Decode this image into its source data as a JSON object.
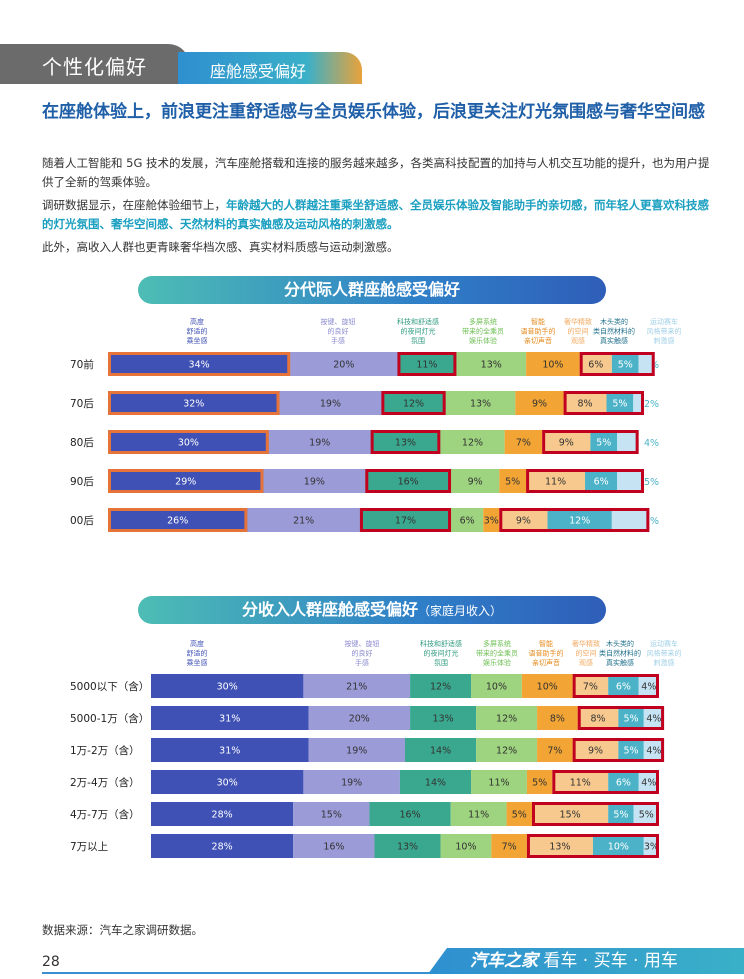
{
  "header": {
    "section": "个性化偏好",
    "subsection": "座舱感受偏好"
  },
  "headline": "在座舱体验上，前浪更注重舒适感与全员娱乐体验，后浪更关注灯光氛围感与奢华空间感",
  "paragraphs": {
    "p1": "随着人工智能和 5G 技术的发展，汽车座舱搭载和连接的服务越来越多，各类高科技配置的加持与人机交互功能的提升，也为用户提供了全新的驾乘体验。",
    "p2_lead": "调研数据显示，在座舱体验细节上，",
    "p2_highlight": "年龄越大的人群越注重乘坐舒适感、全员娱乐体验及智能助手的亲切感，而年轻人更喜欢科技感的灯光氛围、奢华空间感、天然材料的真实触感及运动风格的刺激感。",
    "p3": "此外，高收入人群也更青睐奢华档次感、真实材料质感与运动刺激感。"
  },
  "source_note": "数据来源：汽车之家调研数据。",
  "page_number": "28",
  "footer": {
    "brand": "汽车之家",
    "slogan": "看车 · 买车 · 用车"
  },
  "colors": {
    "c1": "#3f51b5",
    "c2": "#9b9bd8",
    "c3": "#3aa88e",
    "c4": "#9ed37f",
    "c5": "#f2a535",
    "c6": "#f7c98e",
    "c7": "#4bb2c7",
    "c8": "#c6e3f3",
    "highlight_orange": "#e6733a",
    "highlight_red": "#c0001e"
  },
  "chart_data": [
    {
      "type": "bar",
      "stacked": true,
      "orientation": "horizontal",
      "title": "分代际人群座舱感受偏好",
      "subtitle": "",
      "categories": [
        "70前",
        "70后",
        "80后",
        "90后",
        "00后"
      ],
      "series": [
        {
          "name": "高度舒适的乘坐感",
          "values": [
            34,
            32,
            30,
            29,
            26
          ],
          "labels": [
            "34%",
            "32%",
            "30%",
            "29%",
            "26%"
          ]
        },
        {
          "name": "按键、旋钮的良好手感",
          "values": [
            20,
            19,
            19,
            19,
            21
          ],
          "labels": [
            "20%",
            "19%",
            "19%",
            "19%",
            "21%"
          ]
        },
        {
          "name": "科技和舒适感的夜间灯光氛围",
          "values": [
            11,
            12,
            13,
            16,
            17
          ],
          "labels": [
            "11%",
            "12%",
            "13%",
            "16%",
            "17%"
          ]
        },
        {
          "name": "多屏系统带来的全乘员娱乐体验",
          "values": [
            13,
            13,
            12,
            9,
            6
          ],
          "labels": [
            "13%",
            "13%",
            "12%",
            "9%",
            "6%"
          ]
        },
        {
          "name": "智能语音助手的亲切声音",
          "values": [
            10,
            9,
            7,
            5,
            3
          ],
          "labels": [
            "10%",
            "9%",
            "7%",
            "5%",
            "3%"
          ]
        },
        {
          "name": "奢华精致的空间观感",
          "values": [
            6,
            8,
            9,
            11,
            9
          ],
          "labels": [
            "6%",
            "8%",
            "9%",
            "11%",
            "9%"
          ]
        },
        {
          "name": "木头类的类自然材料的真实触感",
          "values": [
            5,
            5,
            5,
            6,
            12
          ],
          "labels": [
            "5%",
            "5%",
            "5%",
            "6%",
            "12%"
          ]
        },
        {
          "name": "运动赛车风格带来的刺激感",
          "values": [
            3,
            2,
            4,
            5,
            7
          ],
          "labels": [
            "3%",
            "2%",
            "4%",
            "5%",
            "7%"
          ]
        }
      ],
      "legend_display": [
        [
          "高度",
          "舒适的",
          "乘坐感"
        ],
        [
          "按键、旋钮",
          "的良好",
          "手感"
        ],
        [
          "科技和舒适感",
          "的夜间灯光",
          "氛围"
        ],
        [
          "多屏系统",
          "带来的全乘员",
          "娱乐体验"
        ],
        [
          "智能",
          "语音助手的",
          "亲切声音"
        ],
        [
          "奢华精致",
          "的空间",
          "观感"
        ],
        [
          "木头类的",
          "类自然材料的",
          "真实触感"
        ],
        [
          "运动赛车",
          "风格带来的",
          "刺激感"
        ]
      ]
    },
    {
      "type": "bar",
      "stacked": true,
      "orientation": "horizontal",
      "title": "分收入人群座舱感受偏好",
      "subtitle": "（家庭月收入）",
      "categories": [
        "5000以下（含）",
        "5000-1万（含）",
        "1万-2万（含）",
        "2万-4万（含）",
        "4万-7万（含）",
        "7万以上"
      ],
      "series": [
        {
          "name": "高度舒适的乘坐感",
          "values": [
            30,
            31,
            31,
            30,
            28,
            28
          ],
          "labels": [
            "30%",
            "31%",
            "31%",
            "30%",
            "28%",
            "28%"
          ]
        },
        {
          "name": "按键、旋钮的良好手感",
          "values": [
            21,
            20,
            19,
            19,
            15,
            16
          ],
          "labels": [
            "21%",
            "20%",
            "19%",
            "19%",
            "15%",
            "16%"
          ]
        },
        {
          "name": "科技和舒适感的夜间灯光氛围",
          "values": [
            12,
            13,
            14,
            14,
            16,
            13
          ],
          "labels": [
            "12%",
            "13%",
            "14%",
            "14%",
            "16%",
            "13%"
          ]
        },
        {
          "name": "多屏系统带来的全乘员娱乐体验",
          "values": [
            10,
            12,
            12,
            11,
            11,
            10
          ],
          "labels": [
            "10%",
            "12%",
            "12%",
            "11%",
            "11%",
            "10%"
          ]
        },
        {
          "name": "智能语音助手的亲切声音",
          "values": [
            10,
            8,
            7,
            5,
            5,
            7
          ],
          "labels": [
            "10%",
            "8%",
            "7%",
            "5%",
            "5%",
            "7%"
          ]
        },
        {
          "name": "奢华精致的空间观感",
          "values": [
            7,
            8,
            9,
            11,
            15,
            13
          ],
          "labels": [
            "7%",
            "8%",
            "9%",
            "11%",
            "15%",
            "13%"
          ]
        },
        {
          "name": "木头类的类自然材料的真实触感",
          "values": [
            6,
            5,
            5,
            6,
            5,
            10
          ],
          "labels": [
            "6%",
            "5%",
            "5%",
            "6%",
            "5%",
            "10%"
          ]
        },
        {
          "name": "运动赛车风格带来的刺激感",
          "values": [
            4,
            4,
            4,
            4,
            5,
            3
          ],
          "labels": [
            "4%",
            "4%",
            "4%",
            "4%",
            "5%",
            "3%"
          ]
        }
      ],
      "legend_display": [
        [
          "高度",
          "舒适的",
          "乘坐感"
        ],
        [
          "按键、旋钮",
          "的良好",
          "手感"
        ],
        [
          "科技和舒适感",
          "的夜间灯光",
          "氛围"
        ],
        [
          "多屏系统",
          "带来的全乘员",
          "娱乐体验"
        ],
        [
          "智能",
          "语音助手的",
          "亲切声音"
        ],
        [
          "奢华精致",
          "的空间",
          "观感"
        ],
        [
          "木头类的",
          "类自然材料的",
          "真实触感"
        ],
        [
          "运动赛车",
          "风格带来的",
          "刺激感"
        ]
      ]
    }
  ]
}
